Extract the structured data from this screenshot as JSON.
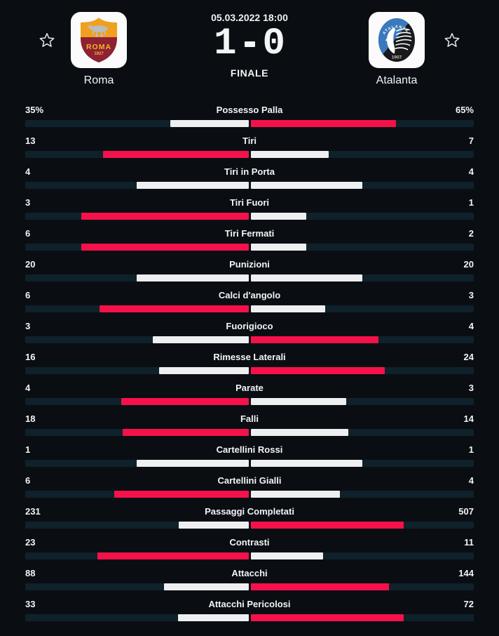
{
  "header": {
    "datetime": "05.03.2022 18:00",
    "status": "FINALE",
    "score": {
      "home": "1",
      "away": "0",
      "separator": "-"
    },
    "home_team": {
      "name": "Roma",
      "crest_text": "ROMA",
      "crest_year": "1927"
    },
    "away_team": {
      "name": "Atalanta",
      "crest_text": "ATALANTA",
      "crest_year": "1907"
    }
  },
  "colors": {
    "background": "#0a0e13",
    "track": "#0f212a",
    "highlight": "#f6114b",
    "neutral": "#edeff0",
    "badge_background": "#fbfbfb",
    "roma_gold": "#f0a01e",
    "roma_maroon": "#8e2133",
    "atalanta_blue": "#3a79bd",
    "atalanta_black": "#17191d"
  },
  "icons": {
    "favorite": "star-outline-icon"
  },
  "chart_data": {
    "type": "bar",
    "title": "Match statistics Roma vs Atalanta",
    "legend_entries": [
      "Roma",
      "Atalanta"
    ],
    "note": "Each row is a centered two-sided bar; side length = value / (home+away); higher side colored highlight red, ties colored neutral white",
    "categories": [
      "Possesso Palla",
      "Tiri",
      "Tiri in Porta",
      "Tiri Fuori",
      "Tiri Fermati",
      "Punizioni",
      "Calci d'angolo",
      "Fuorigioco",
      "Rimesse Laterali",
      "Parate",
      "Falli",
      "Cartellini Rossi",
      "Cartellini Gialli",
      "Passaggi Completati",
      "Contrasti",
      "Attacchi",
      "Attacchi Pericolosi"
    ],
    "series": [
      {
        "name": "Roma",
        "values": [
          35,
          13,
          4,
          3,
          6,
          20,
          6,
          3,
          16,
          4,
          18,
          1,
          6,
          231,
          23,
          88,
          33
        ]
      },
      {
        "name": "Atalanta",
        "values": [
          65,
          7,
          4,
          1,
          2,
          20,
          3,
          4,
          24,
          3,
          14,
          1,
          4,
          507,
          11,
          144,
          72
        ]
      }
    ]
  },
  "stats": [
    {
      "label": "Possesso Palla",
      "home": "35%",
      "away": "65%",
      "home_value": 35,
      "away_value": 65
    },
    {
      "label": "Tiri",
      "home": "13",
      "away": "7",
      "home_value": 13,
      "away_value": 7
    },
    {
      "label": "Tiri in Porta",
      "home": "4",
      "away": "4",
      "home_value": 4,
      "away_value": 4
    },
    {
      "label": "Tiri Fuori",
      "home": "3",
      "away": "1",
      "home_value": 3,
      "away_value": 1
    },
    {
      "label": "Tiri Fermati",
      "home": "6",
      "away": "2",
      "home_value": 6,
      "away_value": 2
    },
    {
      "label": "Punizioni",
      "home": "20",
      "away": "20",
      "home_value": 20,
      "away_value": 20
    },
    {
      "label": "Calci d'angolo",
      "home": "6",
      "away": "3",
      "home_value": 6,
      "away_value": 3
    },
    {
      "label": "Fuorigioco",
      "home": "3",
      "away": "4",
      "home_value": 3,
      "away_value": 4
    },
    {
      "label": "Rimesse Laterali",
      "home": "16",
      "away": "24",
      "home_value": 16,
      "away_value": 24
    },
    {
      "label": "Parate",
      "home": "4",
      "away": "3",
      "home_value": 4,
      "away_value": 3
    },
    {
      "label": "Falli",
      "home": "18",
      "away": "14",
      "home_value": 18,
      "away_value": 14
    },
    {
      "label": "Cartellini Rossi",
      "home": "1",
      "away": "1",
      "home_value": 1,
      "away_value": 1
    },
    {
      "label": "Cartellini Gialli",
      "home": "6",
      "away": "4",
      "home_value": 6,
      "away_value": 4
    },
    {
      "label": "Passaggi Completati",
      "home": "231",
      "away": "507",
      "home_value": 231,
      "away_value": 507
    },
    {
      "label": "Contrasti",
      "home": "23",
      "away": "11",
      "home_value": 23,
      "away_value": 11
    },
    {
      "label": "Attacchi",
      "home": "88",
      "away": "144",
      "home_value": 88,
      "away_value": 144
    },
    {
      "label": "Attacchi Pericolosi",
      "home": "33",
      "away": "72",
      "home_value": 33,
      "away_value": 72
    }
  ]
}
